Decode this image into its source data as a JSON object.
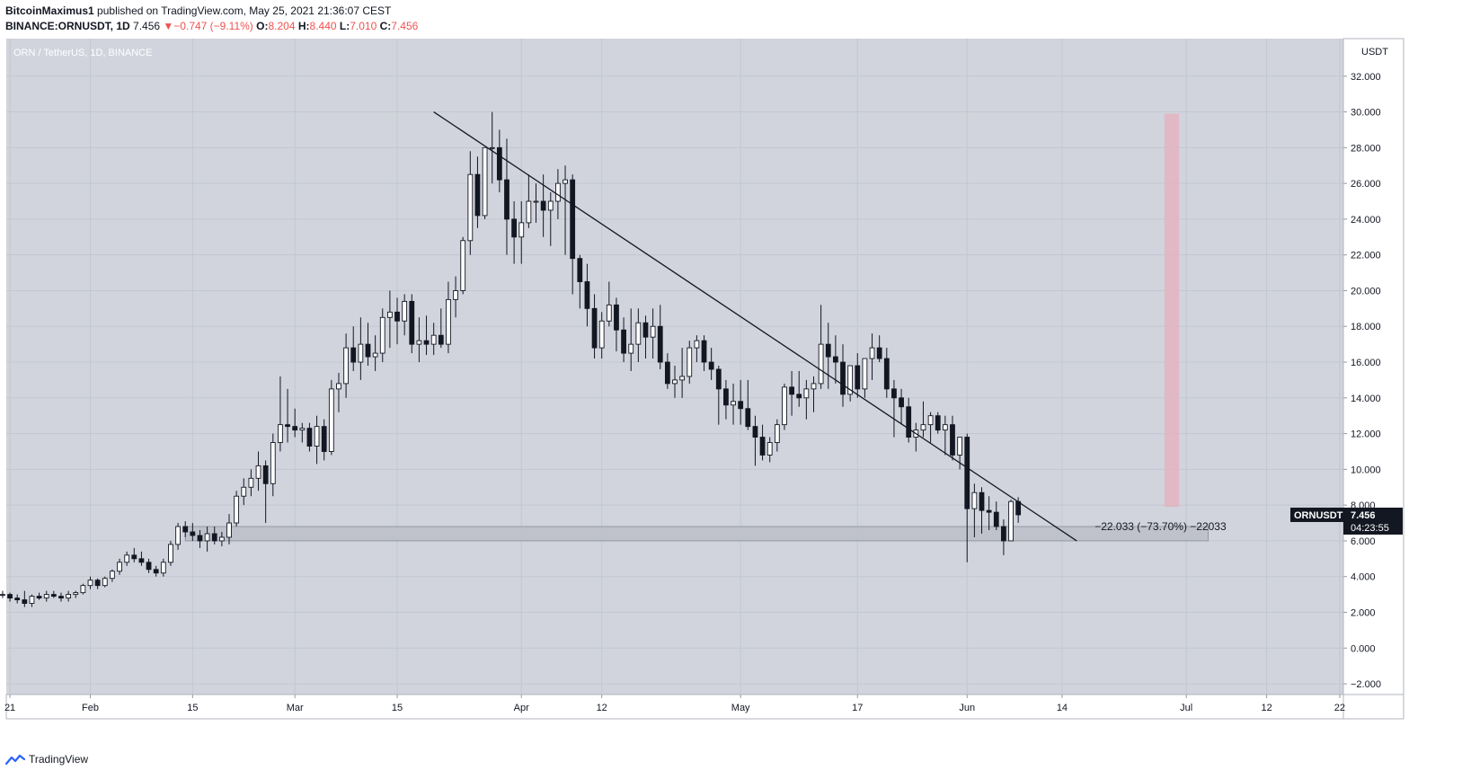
{
  "header": {
    "author": "BitcoinMaximus1",
    "published": "published on TradingView.com, May 25, 2021 21:36:07 CEST",
    "symbol": "BINANCE:ORNUSDT, 1D",
    "last": "7.456",
    "change_arrow": "▼",
    "change": "−0.747 (−9.11%)",
    "o_label": "O:",
    "o": "8.204",
    "h_label": "H:",
    "h": "8.440",
    "l_label": "L:",
    "l": "7.010",
    "c_label": "C:",
    "c": "7.456"
  },
  "footer": {
    "brand": "TradingView",
    "logo_icon": "tradingview-logo-icon"
  },
  "colors": {
    "plot_bg": "#d1d4dc",
    "grid": "#c3c7d0",
    "axis_bg": "#ffffff",
    "candle_up": "#ffffff",
    "candle_down": "#131722",
    "wick": "#131722",
    "support_zone": "#bcc0c9",
    "target_zone": "#e3b4c0",
    "label_bg": "#131722"
  },
  "chart_data": {
    "type": "candlestick",
    "title": "ORN / TetherUS, 1D, BINANCE",
    "currency": "USDT",
    "ylim": [
      -2.6,
      34.1
    ],
    "y_ticks": [
      -2,
      0,
      2,
      4,
      6,
      8,
      10,
      12,
      14,
      16,
      18,
      20,
      22,
      24,
      26,
      28,
      30,
      32
    ],
    "y_tick_labels": [
      "−2.000",
      "0.000",
      "2.000",
      "4.000",
      "6.000",
      "8.000",
      "10.000",
      "12.000",
      "14.000",
      "16.000",
      "18.000",
      "20.000",
      "22.000",
      "24.000",
      "26.000",
      "28.000",
      "30.000",
      "32.000"
    ],
    "x_start": "2021-01-20",
    "x_range": [
      "2021-01-20",
      "2021-07-22"
    ],
    "x_ticks": [
      {
        "date": "2021-01-21",
        "label": "21"
      },
      {
        "date": "2021-02-01",
        "label": "Feb"
      },
      {
        "date": "2021-02-15",
        "label": "15"
      },
      {
        "date": "2021-03-01",
        "label": "Mar"
      },
      {
        "date": "2021-03-15",
        "label": "15"
      },
      {
        "date": "2021-04-01",
        "label": "Apr"
      },
      {
        "date": "2021-04-12",
        "label": "12"
      },
      {
        "date": "2021-05-01",
        "label": "May"
      },
      {
        "date": "2021-05-17",
        "label": "17"
      },
      {
        "date": "2021-06-01",
        "label": "Jun"
      },
      {
        "date": "2021-06-14",
        "label": "14"
      },
      {
        "date": "2021-07-01",
        "label": "Jul"
      },
      {
        "date": "2021-07-12",
        "label": "12"
      },
      {
        "date": "2021-07-22",
        "label": "22"
      }
    ],
    "candles": [
      [
        3.0,
        3.2,
        2.8,
        3.0
      ],
      [
        3.0,
        3.1,
        2.6,
        2.8
      ],
      [
        2.8,
        3.0,
        2.5,
        2.7
      ],
      [
        2.7,
        3.2,
        2.3,
        2.5
      ],
      [
        2.5,
        3.0,
        2.3,
        2.9
      ],
      [
        2.9,
        3.1,
        2.7,
        2.8
      ],
      [
        2.8,
        3.2,
        2.6,
        3.0
      ],
      [
        3.0,
        3.2,
        2.8,
        2.9
      ],
      [
        2.9,
        3.1,
        2.6,
        2.8
      ],
      [
        2.8,
        3.2,
        2.6,
        3.0
      ],
      [
        3.0,
        3.2,
        2.8,
        3.1
      ],
      [
        3.1,
        3.6,
        3.0,
        3.5
      ],
      [
        3.5,
        4.0,
        3.3,
        3.8
      ],
      [
        3.8,
        3.9,
        3.3,
        3.5
      ],
      [
        3.5,
        4.0,
        3.4,
        3.9
      ],
      [
        3.9,
        4.4,
        3.7,
        4.3
      ],
      [
        4.3,
        5.0,
        4.1,
        4.8
      ],
      [
        4.8,
        5.4,
        4.6,
        5.2
      ],
      [
        5.2,
        5.6,
        4.8,
        5.0
      ],
      [
        5.0,
        5.4,
        4.6,
        4.8
      ],
      [
        4.8,
        5.0,
        4.2,
        4.4
      ],
      [
        4.4,
        4.6,
        4.0,
        4.2
      ],
      [
        4.2,
        5.0,
        4.0,
        4.8
      ],
      [
        4.8,
        6.0,
        4.6,
        5.8
      ],
      [
        5.8,
        7.0,
        5.5,
        6.8
      ],
      [
        6.8,
        7.1,
        6.2,
        6.5
      ],
      [
        6.5,
        7.0,
        6.0,
        6.3
      ],
      [
        6.3,
        6.6,
        5.6,
        6.0
      ],
      [
        6.0,
        6.8,
        5.4,
        6.4
      ],
      [
        6.4,
        6.8,
        5.8,
        6.0
      ],
      [
        6.0,
        6.5,
        5.7,
        6.2
      ],
      [
        6.2,
        7.5,
        5.8,
        7.0
      ],
      [
        7.0,
        8.8,
        6.8,
        8.5
      ],
      [
        8.5,
        9.5,
        8.0,
        9.0
      ],
      [
        9.0,
        10.0,
        8.5,
        9.5
      ],
      [
        9.5,
        11.0,
        8.8,
        10.2
      ],
      [
        10.2,
        10.5,
        7.0,
        9.2
      ],
      [
        9.2,
        12.0,
        8.5,
        11.5
      ],
      [
        11.5,
        15.2,
        11.0,
        12.5
      ],
      [
        12.5,
        14.5,
        11.5,
        12.4
      ],
      [
        12.4,
        13.4,
        11.8,
        12.2
      ],
      [
        12.2,
        12.6,
        11.5,
        12.3
      ],
      [
        12.3,
        12.6,
        11.0,
        11.3
      ],
      [
        11.3,
        13.0,
        10.3,
        12.4
      ],
      [
        12.4,
        12.8,
        10.5,
        11.0
      ],
      [
        11.0,
        15.0,
        10.8,
        14.5
      ],
      [
        14.5,
        15.4,
        13.2,
        14.8
      ],
      [
        14.8,
        17.6,
        14.0,
        16.8
      ],
      [
        16.8,
        18.0,
        15.5,
        16.0
      ],
      [
        16.0,
        18.5,
        15.0,
        17.0
      ],
      [
        17.0,
        18.2,
        15.8,
        16.3
      ],
      [
        16.3,
        17.5,
        15.5,
        16.5
      ],
      [
        16.5,
        19.0,
        16.0,
        18.5
      ],
      [
        18.5,
        20.0,
        16.8,
        18.8
      ],
      [
        18.8,
        19.6,
        17.0,
        18.3
      ],
      [
        18.3,
        19.8,
        17.5,
        19.4
      ],
      [
        19.4,
        19.8,
        16.5,
        17.0
      ],
      [
        17.0,
        18.5,
        16.0,
        17.2
      ],
      [
        17.2,
        18.6,
        16.4,
        17.0
      ],
      [
        17.0,
        18.2,
        16.4,
        17.5
      ],
      [
        17.5,
        19.0,
        16.8,
        17.0
      ],
      [
        17.0,
        20.5,
        16.5,
        19.5
      ],
      [
        19.5,
        20.8,
        18.5,
        20.0
      ],
      [
        20.0,
        23.0,
        19.8,
        22.8
      ],
      [
        22.8,
        27.8,
        22.0,
        26.5
      ],
      [
        26.5,
        27.5,
        23.5,
        24.2
      ],
      [
        24.2,
        28.0,
        24.0,
        28.0
      ],
      [
        28.0,
        30.0,
        26.0,
        28.0
      ],
      [
        28.0,
        29.0,
        25.5,
        26.2
      ],
      [
        26.2,
        28.5,
        22.0,
        24.0
      ],
      [
        24.0,
        25.0,
        21.5,
        23.0
      ],
      [
        23.0,
        25.0,
        21.5,
        23.8
      ],
      [
        23.8,
        26.5,
        23.5,
        25.0
      ],
      [
        25.0,
        26.0,
        23.8,
        25.0
      ],
      [
        25.0,
        26.5,
        23.0,
        24.5
      ],
      [
        24.5,
        25.5,
        22.5,
        25.0
      ],
      [
        25.0,
        26.8,
        24.0,
        26.0
      ],
      [
        26.0,
        27.0,
        22.0,
        26.2
      ],
      [
        26.2,
        26.5,
        19.8,
        21.8
      ],
      [
        21.8,
        22.0,
        19.0,
        20.5
      ],
      [
        20.5,
        21.5,
        18.0,
        19.0
      ],
      [
        19.0,
        19.8,
        16.2,
        16.8
      ],
      [
        16.8,
        18.8,
        16.2,
        18.3
      ],
      [
        18.3,
        20.5,
        18.0,
        19.2
      ],
      [
        19.2,
        19.6,
        16.6,
        17.8
      ],
      [
        17.8,
        18.5,
        16.0,
        16.5
      ],
      [
        16.5,
        19.0,
        15.5,
        17.0
      ],
      [
        17.0,
        19.0,
        16.0,
        18.2
      ],
      [
        18.2,
        18.6,
        16.2,
        17.4
      ],
      [
        17.4,
        19.0,
        16.2,
        18.0
      ],
      [
        18.0,
        19.2,
        15.6,
        16.0
      ],
      [
        16.0,
        16.5,
        14.5,
        14.8
      ],
      [
        14.8,
        15.8,
        14.0,
        15.0
      ],
      [
        15.0,
        16.8,
        14.0,
        15.2
      ],
      [
        15.2,
        17.2,
        14.8,
        16.8
      ],
      [
        16.8,
        17.5,
        16.0,
        17.2
      ],
      [
        17.2,
        17.5,
        15.5,
        16.0
      ],
      [
        16.0,
        16.8,
        15.0,
        15.6
      ],
      [
        15.6,
        15.8,
        12.5,
        14.5
      ],
      [
        14.5,
        15.0,
        12.8,
        13.6
      ],
      [
        13.6,
        14.8,
        12.5,
        13.8
      ],
      [
        13.8,
        15.0,
        12.5,
        13.4
      ],
      [
        13.4,
        15.0,
        12.2,
        12.4
      ],
      [
        12.4,
        13.0,
        10.2,
        11.8
      ],
      [
        11.8,
        12.5,
        10.5,
        10.8
      ],
      [
        10.8,
        11.8,
        10.4,
        11.5
      ],
      [
        11.5,
        12.8,
        11.0,
        12.5
      ],
      [
        12.5,
        14.8,
        12.2,
        14.6
      ],
      [
        14.6,
        15.5,
        13.0,
        14.2
      ],
      [
        14.2,
        15.5,
        13.5,
        14.0
      ],
      [
        14.0,
        15.0,
        12.8,
        14.5
      ],
      [
        14.5,
        15.2,
        13.2,
        14.8
      ],
      [
        14.8,
        19.2,
        14.5,
        17.0
      ],
      [
        17.0,
        18.2,
        14.5,
        16.3
      ],
      [
        16.3,
        17.5,
        14.8,
        16.0
      ],
      [
        16.0,
        17.0,
        13.5,
        14.2
      ],
      [
        14.2,
        15.8,
        13.8,
        15.8
      ],
      [
        15.8,
        16.5,
        14.0,
        14.5
      ],
      [
        14.5,
        16.0,
        14.0,
        16.2
      ],
      [
        16.2,
        17.6,
        15.0,
        16.8
      ],
      [
        16.8,
        17.5,
        16.0,
        16.2
      ],
      [
        16.2,
        16.8,
        14.0,
        14.5
      ],
      [
        14.5,
        15.0,
        11.8,
        14.0
      ],
      [
        14.0,
        14.5,
        12.5,
        13.5
      ],
      [
        13.5,
        14.0,
        11.5,
        11.8
      ],
      [
        11.8,
        12.6,
        11.0,
        12.2
      ],
      [
        12.2,
        13.8,
        11.8,
        12.5
      ],
      [
        12.5,
        13.2,
        11.5,
        13.0
      ],
      [
        13.0,
        13.2,
        12.0,
        12.2
      ],
      [
        12.2,
        13.0,
        10.8,
        12.5
      ],
      [
        12.5,
        13.0,
        10.5,
        10.8
      ],
      [
        10.8,
        11.8,
        10.0,
        11.8
      ],
      [
        11.8,
        12.0,
        4.8,
        7.8
      ],
      [
        7.8,
        9.2,
        6.2,
        8.7
      ],
      [
        8.7,
        9.0,
        6.4,
        7.7
      ],
      [
        7.7,
        8.5,
        6.6,
        7.6
      ],
      [
        7.6,
        8.2,
        6.6,
        6.8
      ],
      [
        6.8,
        7.2,
        5.2,
        6.0
      ],
      [
        6.0,
        8.3,
        6.0,
        8.2
      ],
      [
        8.2,
        8.44,
        7.01,
        7.456
      ]
    ],
    "trendline": {
      "from": {
        "date": "2021-03-20",
        "price": 30.0
      },
      "to": {
        "date": "2021-06-16",
        "price": 6.0
      }
    },
    "support_zone": {
      "from_date": "2021-02-14",
      "to_date": "2021-07-04",
      "low": 6.0,
      "high": 6.8
    },
    "target_zone": {
      "from_date": "2021-06-28",
      "to_date": "2021-06-30",
      "low": 7.9,
      "high": 29.9
    },
    "measure_label": "−22.033 (−73.70%) −22033",
    "measure_at": {
      "date": "2021-06-16",
      "price": 6.8
    },
    "last_price_label": {
      "symbol": "ORNUSDT",
      "price": "7.456",
      "countdown": "04:23:55",
      "value": 7.456
    }
  }
}
